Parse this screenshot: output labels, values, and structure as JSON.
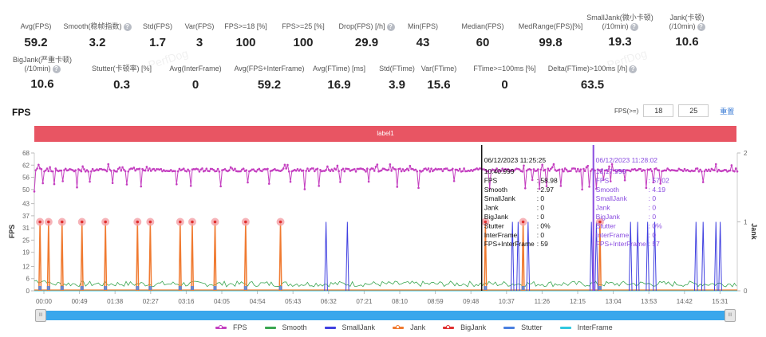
{
  "stats_row1": [
    {
      "label": "Avg(FPS)",
      "value": "59.2",
      "help": false
    },
    {
      "label": "Smooth(稳帧指数)",
      "value": "3.2",
      "help": true
    },
    {
      "label": "Std(FPS)",
      "value": "1.7",
      "help": false
    },
    {
      "label": "Var(FPS)",
      "value": "3",
      "help": false
    },
    {
      "label": "FPS>=18 [%]",
      "value": "100",
      "help": false
    },
    {
      "label": "FPS>=25 [%]",
      "value": "100",
      "help": false
    },
    {
      "label": "Drop(FPS) [/h]",
      "value": "29.9",
      "help": true
    },
    {
      "label": "Min(FPS)",
      "value": "43",
      "help": false
    },
    {
      "label": "Median(FPS)",
      "value": "60",
      "help": false
    },
    {
      "label": "MedRange(FPS)[%]",
      "value": "99.8",
      "help": false
    },
    {
      "label": "SmallJank(微小卡顿)",
      "label2": "(/10min)",
      "value": "19.3",
      "help": true
    },
    {
      "label": "Jank(卡顿)",
      "label2": "(/10min)",
      "value": "10.6",
      "help": true
    }
  ],
  "stats_row2": [
    {
      "label": "BigJank(严重卡顿)",
      "label2": "(/10min)",
      "value": "10.6",
      "help": true
    },
    {
      "label": "Stutter(卡顿率) [%]",
      "value": "0.3",
      "help": false
    },
    {
      "label": "Avg(InterFrame)",
      "value": "0",
      "help": false
    },
    {
      "label": "Avg(FPS+InterFrame)",
      "value": "59.2",
      "help": false
    },
    {
      "label": "Avg(FTime) [ms]",
      "value": "16.9",
      "help": false
    },
    {
      "label": "Std(FTime)",
      "value": "3.9",
      "help": false
    },
    {
      "label": "Var(FTime)",
      "value": "15.6",
      "help": false
    },
    {
      "label": "FTime>=100ms [%]",
      "value": "0",
      "help": false
    },
    {
      "label": "Delta(FTime)>100ms [/h]",
      "value": "63.5",
      "help": true
    }
  ],
  "help_glyph": "?",
  "watermark": "PerfDog",
  "section": {
    "title": "FPS"
  },
  "fps_filter": {
    "label": "FPS(>=)",
    "value1": "18",
    "value2": "25",
    "reset_label": "重置"
  },
  "label_band": {
    "text": "label1",
    "color": "#e85563"
  },
  "slider": {
    "handle_glyph": "III",
    "range_start": 0,
    "range_end": 1
  },
  "tooltips": [
    {
      "color": "#111111",
      "datetime": "06/12/2023 11:25:25",
      "elapsed": "10:40:999",
      "rows": [
        {
          "key": "FPS",
          "value": ": 58.98"
        },
        {
          "key": "Smooth",
          "value": ": 2.97"
        },
        {
          "key": "SmallJank",
          "value": ": 0"
        },
        {
          "key": "Jank",
          "value": ": 0"
        },
        {
          "key": "BigJank",
          "value": ": 0"
        },
        {
          "key": "Stutter",
          "value": ": 0%"
        },
        {
          "key": "InterFrame",
          "value": ": 0"
        },
        {
          "key": "FPS+InterFrame",
          "value": ": 59"
        }
      ]
    },
    {
      "color": "#8a4de0",
      "datetime": "06/12/2023 11:28:02",
      "elapsed": "13:17:999",
      "rows": [
        {
          "key": "FPS",
          "value": ": 57.02"
        },
        {
          "key": "Smooth",
          "value": ": 4.19"
        },
        {
          "key": "SmallJank",
          "value": ": 0"
        },
        {
          "key": "Jank",
          "value": ": 0"
        },
        {
          "key": "BigJank",
          "value": ": 0"
        },
        {
          "key": "Stutter",
          "value": ": 0%"
        },
        {
          "key": "InterFrame",
          "value": ": 0"
        },
        {
          "key": "FPS+InterFrame",
          "value": ": 57"
        }
      ]
    }
  ],
  "chart_data": {
    "type": "line",
    "title": "FPS",
    "xlabel": "",
    "ylabel": "FPS",
    "y2label": "Jank",
    "x_ticks": [
      "00:00",
      "00:49",
      "01:38",
      "02:27",
      "03:16",
      "04:05",
      "04:54",
      "05:43",
      "06:32",
      "07:21",
      "08:10",
      "08:59",
      "09:48",
      "10:37",
      "11:26",
      "12:15",
      "13:04",
      "13:53",
      "14:42",
      "15:31"
    ],
    "x_range_seconds": [
      0,
      988
    ],
    "y_ticks": [
      0,
      6,
      12,
      19,
      25,
      31,
      37,
      43,
      50,
      56,
      62,
      68
    ],
    "ylim": [
      0,
      68
    ],
    "y2_ticks": [
      0,
      1,
      2
    ],
    "y2lim": [
      0,
      2
    ],
    "grid": false,
    "legend_position": "bottom",
    "series": [
      {
        "name": "FPS",
        "color": "#c43fc0",
        "marker": true,
        "axis": "left",
        "typical_value": 59.2,
        "min": 43,
        "dip_times_s": [
          5,
          12,
          28,
          40,
          60,
          78,
          95,
          110,
          130,
          150,
          175,
          200,
          220,
          245,
          262,
          275,
          300,
          330,
          360,
          380,
          400,
          430,
          470,
          510,
          540,
          590,
          640,
          690,
          700,
          710,
          720,
          740,
          770,
          780,
          790,
          800,
          810,
          830,
          860,
          870,
          880,
          895,
          905,
          915,
          925,
          940,
          965
        ]
      },
      {
        "name": "Smooth",
        "color": "#3aa650",
        "marker": false,
        "axis": "left",
        "typical_value": 3.2,
        "range": [
          1,
          6
        ]
      },
      {
        "name": "SmallJank",
        "color": "#4040e0",
        "marker": false,
        "axis": "right",
        "spike_times_s": [
          410,
          440,
          672,
          680,
          694,
          783,
          790,
          838,
          848,
          862,
          872,
          930,
          940,
          958,
          964
        ]
      },
      {
        "name": "Jank",
        "color": "#f07a30",
        "marker": true,
        "axis": "right",
        "spike_times_s": [
          8,
          20,
          39,
          67,
          100,
          145,
          163,
          205,
          222,
          254,
          297,
          346,
          634,
          687,
          795
        ]
      },
      {
        "name": "BigJank",
        "color": "#e03030",
        "marker": true,
        "axis": "right",
        "spike_times_s": [
          8,
          20,
          39,
          67,
          100,
          145,
          163,
          205,
          222,
          254,
          297,
          346,
          634,
          687,
          795
        ]
      },
      {
        "name": "Stutter",
        "color": "#4a80e0",
        "marker": false,
        "axis": "right"
      },
      {
        "name": "InterFrame",
        "color": "#30c8e0",
        "marker": false,
        "axis": "left",
        "typical_value": 0
      }
    ],
    "cursors_s": [
      640,
      797
    ]
  }
}
